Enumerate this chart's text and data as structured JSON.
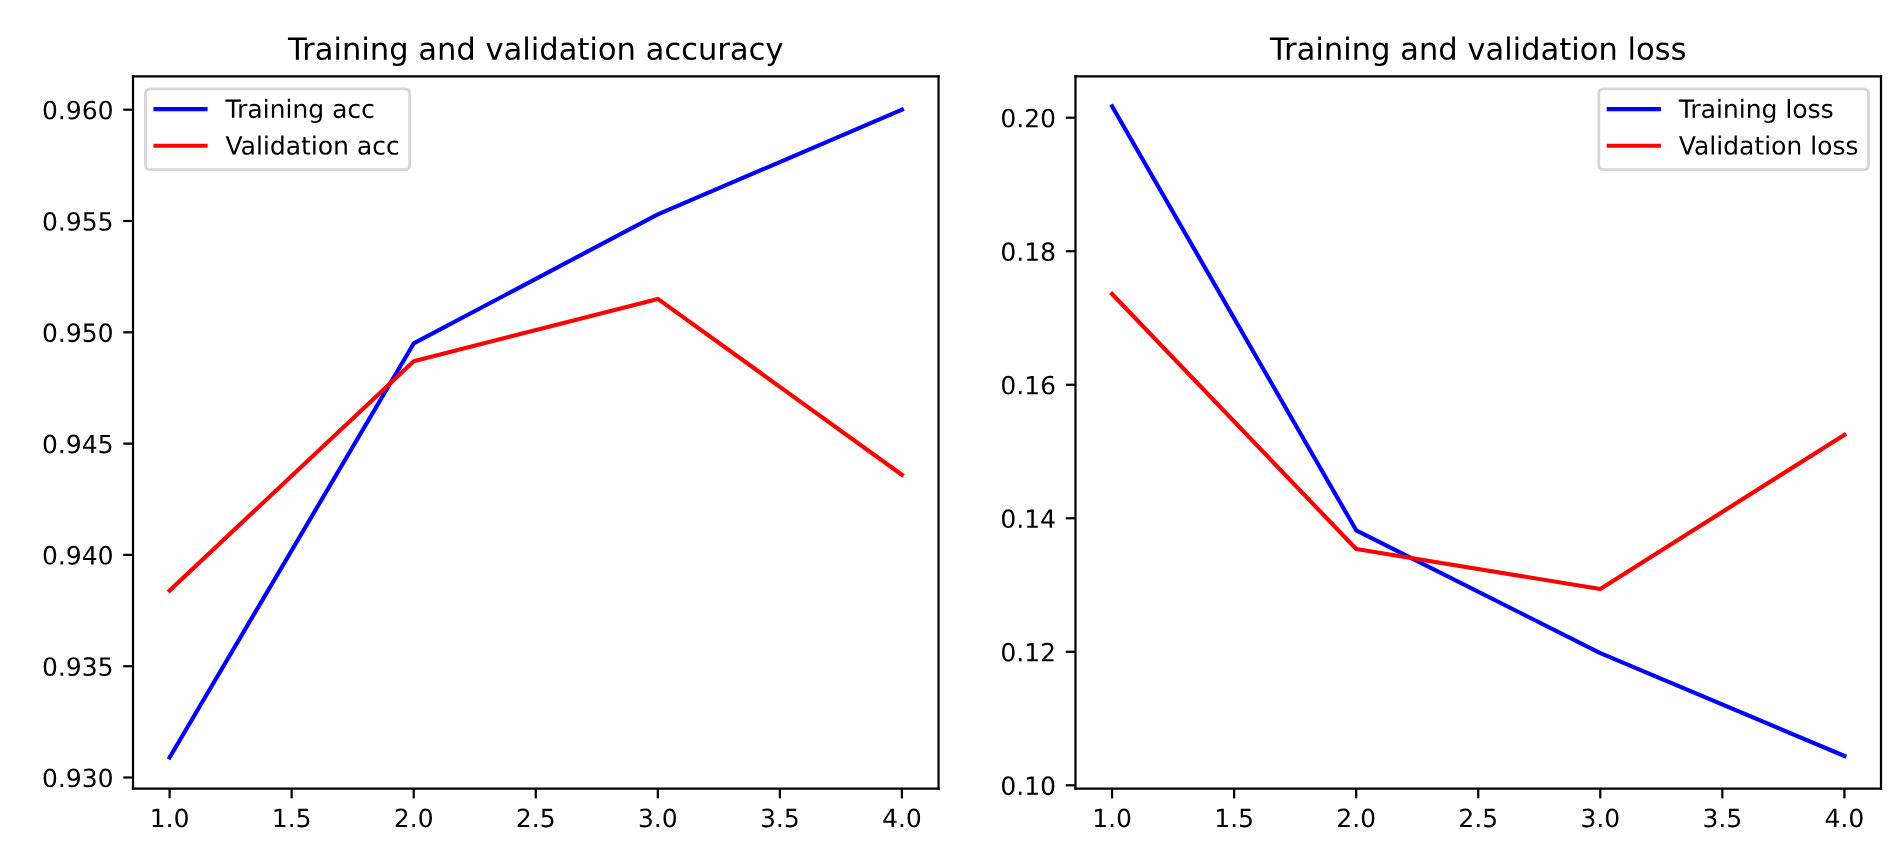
{
  "chart_data": [
    {
      "type": "line",
      "title": "Training and validation accuracy",
      "x": [
        1,
        2,
        3,
        4
      ],
      "series": [
        {
          "name": "Training acc",
          "color": "#0000ff",
          "values": [
            0.9309,
            0.9495,
            0.9553,
            0.96
          ]
        },
        {
          "name": "Validation acc",
          "color": "#ff0000",
          "values": [
            0.9384,
            0.9487,
            0.9515,
            0.9436
          ]
        }
      ],
      "xlim": [
        0.85,
        4.15
      ],
      "xticks": [
        {
          "value": 1,
          "label": "1.0"
        },
        {
          "value": 1.5,
          "label": "1.5"
        },
        {
          "value": 2,
          "label": "2.0"
        },
        {
          "value": 2.5,
          "label": "2.5"
        },
        {
          "value": 3,
          "label": "3.0"
        },
        {
          "value": 3.5,
          "label": "3.5"
        },
        {
          "value": 4,
          "label": "4.0"
        }
      ],
      "ylim": [
        0.9295,
        0.9615
      ],
      "yticks": [
        {
          "value": 0.93,
          "label": "0.930"
        },
        {
          "value": 0.935,
          "label": "0.935"
        },
        {
          "value": 0.94,
          "label": "0.940"
        },
        {
          "value": 0.945,
          "label": "0.945"
        },
        {
          "value": 0.95,
          "label": "0.950"
        },
        {
          "value": 0.955,
          "label": "0.955"
        },
        {
          "value": 0.96,
          "label": "0.960"
        }
      ],
      "legend": "top left",
      "grid": false
    },
    {
      "type": "line",
      "title": "Training and validation loss",
      "x": [
        1,
        2,
        3,
        4
      ],
      "series": [
        {
          "name": "Training loss",
          "color": "#0000ff",
          "values": [
            0.2017,
            0.1382,
            0.1198,
            0.1044
          ]
        },
        {
          "name": "Validation loss",
          "color": "#ff0000",
          "values": [
            0.1736,
            0.1354,
            0.1294,
            0.1525
          ]
        }
      ],
      "xlim": [
        0.85,
        4.15
      ],
      "xticks": [
        {
          "value": 1,
          "label": "1.0"
        },
        {
          "value": 1.5,
          "label": "1.5"
        },
        {
          "value": 2,
          "label": "2.0"
        },
        {
          "value": 2.5,
          "label": "2.5"
        },
        {
          "value": 3,
          "label": "3.0"
        },
        {
          "value": 3.5,
          "label": "3.5"
        },
        {
          "value": 4,
          "label": "4.0"
        }
      ],
      "ylim": [
        0.0995,
        0.2062
      ],
      "yticks": [
        {
          "value": 0.1,
          "label": "0.10"
        },
        {
          "value": 0.12,
          "label": "0.12"
        },
        {
          "value": 0.14,
          "label": "0.14"
        },
        {
          "value": 0.16,
          "label": "0.16"
        },
        {
          "value": 0.18,
          "label": "0.18"
        },
        {
          "value": 0.2,
          "label": "0.20"
        }
      ],
      "legend": "top right",
      "grid": false
    }
  ]
}
